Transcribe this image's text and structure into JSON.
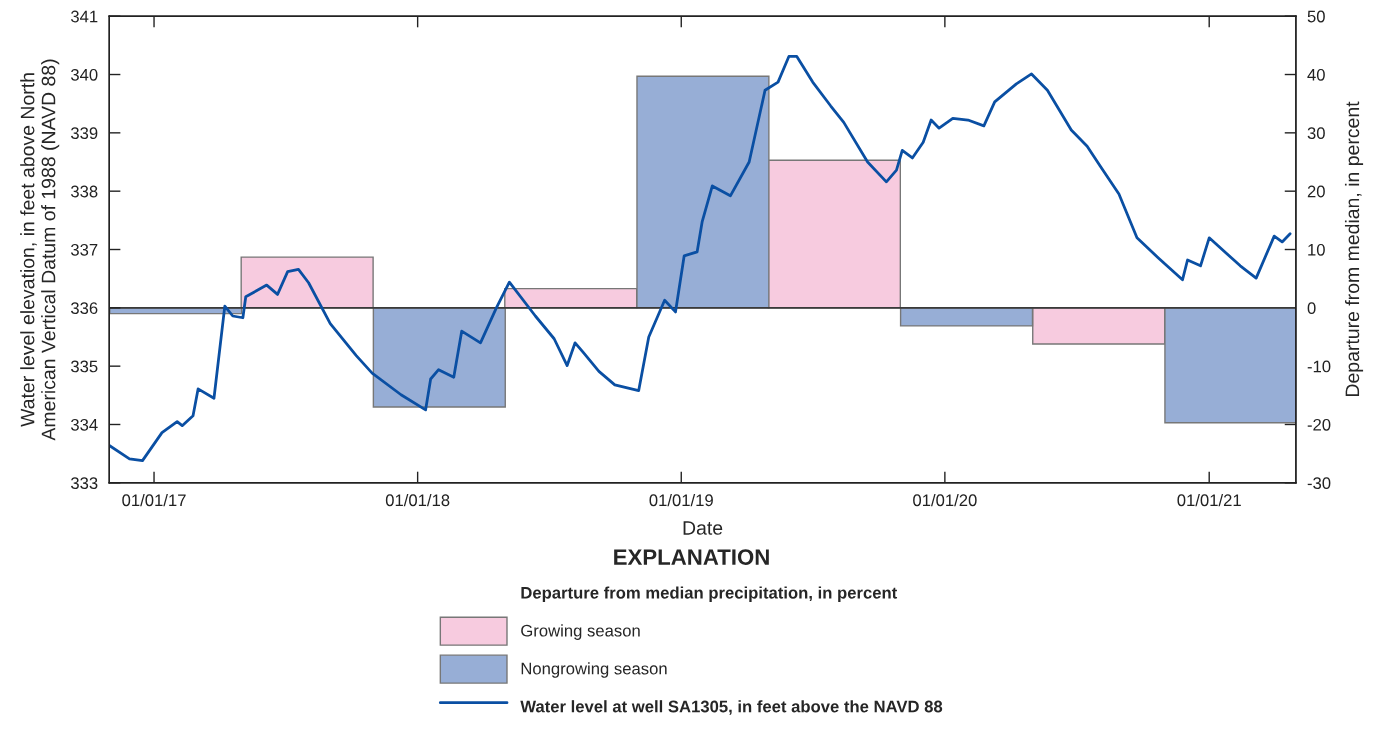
{
  "chart_data": {
    "type": "line",
    "xlabel": "Date",
    "ylabel": "Water level elevation, in feet above North\nAmerican Vertical Datum of 1988 (NAVD 88)",
    "y2label": "Departure from median, in percent",
    "legend_title": "EXPLANATION",
    "annotations": [
      "Departure from median precipitation, in percent"
    ],
    "legend": "bottom",
    "xlim": [
      "2016-10-31",
      "2021-05-01"
    ],
    "xticks": [
      {
        "value": "2017-01-01",
        "label": "01/01/17"
      },
      {
        "value": "2018-01-01",
        "label": "01/01/18"
      },
      {
        "value": "2019-01-01",
        "label": "01/01/19"
      },
      {
        "value": "2020-01-01",
        "label": "01/01/20"
      },
      {
        "value": "2021-01-01",
        "label": "01/01/21"
      }
    ],
    "ylim": [
      333,
      341
    ],
    "yticks": [
      333,
      334,
      335,
      336,
      337,
      338,
      339,
      340,
      341
    ],
    "y2lim": [
      -30,
      50
    ],
    "y2ticks": [
      -30,
      -20,
      -10,
      0,
      10,
      20,
      30,
      40,
      50
    ],
    "ref_lines": [
      {
        "axis": "y2",
        "value": 0,
        "color": "#3a3a3a"
      }
    ],
    "series": [
      {
        "name": "Growing season",
        "type": "bar",
        "axis": "y2",
        "color": "#f7cbdf",
        "x": [
          "2017-08-01",
          "2018-08-01",
          "2019-08-01",
          "2020-08-01"
        ],
        "values": [
          8.7,
          3.3,
          25.3,
          -6.2
        ]
      },
      {
        "name": "Nongrowing season",
        "type": "bar",
        "axis": "y2",
        "color": "#97aed6",
        "x": [
          "2017-01-31",
          "2018-01-31",
          "2019-01-31",
          "2020-01-31",
          "2021-01-31"
        ],
        "values": [
          -1.0,
          -17.0,
          39.7,
          -3.1,
          -19.7
        ]
      },
      {
        "name": "Water level at well SA1305, in feet above the NAVD 88",
        "color": "#0a4fa3",
        "x": [
          "2016-10-31",
          "2016-11-28",
          "2016-12-16",
          "2017-01-12",
          "2017-02-02",
          "2017-02-09",
          "2017-02-24",
          "2017-03-03",
          "2017-03-25",
          "2017-04-09",
          "2017-04-20",
          "2017-05-04",
          "2017-05-08",
          "2017-06-06",
          "2017-06-21",
          "2017-07-05",
          "2017-07-20",
          "2017-08-03",
          "2017-09-02",
          "2017-10-08",
          "2017-10-30",
          "2017-12-09",
          "2018-01-12",
          "2018-01-19",
          "2018-01-30",
          "2018-02-20",
          "2018-03-03",
          "2018-03-29",
          "2018-04-20",
          "2018-05-08",
          "2018-06-13",
          "2018-07-09",
          "2018-07-27",
          "2018-08-07",
          "2018-08-18",
          "2018-09-09",
          "2018-10-01",
          "2018-11-03",
          "2018-11-17",
          "2018-12-09",
          "2018-12-24",
          "2019-01-05",
          "2019-01-23",
          "2019-01-30",
          "2019-02-13",
          "2019-03-10",
          "2019-04-05",
          "2019-04-27",
          "2019-05-15",
          "2019-05-30",
          "2019-06-10",
          "2019-07-02",
          "2019-07-27",
          "2019-08-14",
          "2019-09-16",
          "2019-10-12",
          "2019-10-26",
          "2019-11-03",
          "2019-11-17",
          "2019-12-02",
          "2019-12-13",
          "2019-12-24",
          "2020-01-12",
          "2020-02-02",
          "2020-02-24",
          "2020-03-10",
          "2020-04-09",
          "2020-04-30",
          "2020-05-22",
          "2020-06-24",
          "2020-07-16",
          "2020-08-03",
          "2020-08-29",
          "2020-09-23",
          "2020-10-23",
          "2020-11-25",
          "2020-12-02",
          "2020-12-20",
          "2021-01-01",
          "2021-02-13",
          "2021-03-07",
          "2021-04-01",
          "2021-04-12",
          "2021-04-23"
        ],
        "values": [
          333.64,
          333.41,
          333.38,
          333.86,
          334.05,
          333.98,
          334.15,
          334.61,
          334.45,
          336.03,
          335.86,
          335.83,
          336.19,
          336.39,
          336.23,
          336.62,
          336.66,
          336.43,
          335.73,
          335.18,
          334.88,
          334.51,
          334.25,
          334.78,
          334.94,
          334.81,
          335.6,
          335.4,
          336.0,
          336.44,
          335.86,
          335.47,
          335.01,
          335.4,
          335.24,
          334.91,
          334.68,
          334.58,
          335.5,
          336.13,
          335.93,
          336.89,
          336.96,
          337.48,
          338.09,
          337.92,
          338.5,
          339.73,
          339.87,
          340.31,
          340.31,
          339.87,
          339.46,
          339.18,
          338.5,
          338.16,
          338.36,
          338.7,
          338.57,
          338.84,
          339.22,
          339.08,
          339.25,
          339.22,
          339.12,
          339.53,
          339.84,
          340.01,
          339.73,
          339.05,
          338.77,
          338.43,
          337.95,
          337.2,
          336.85,
          336.48,
          336.82,
          336.72,
          337.2,
          336.72,
          336.51,
          337.23,
          337.13,
          337.27
        ]
      }
    ]
  }
}
